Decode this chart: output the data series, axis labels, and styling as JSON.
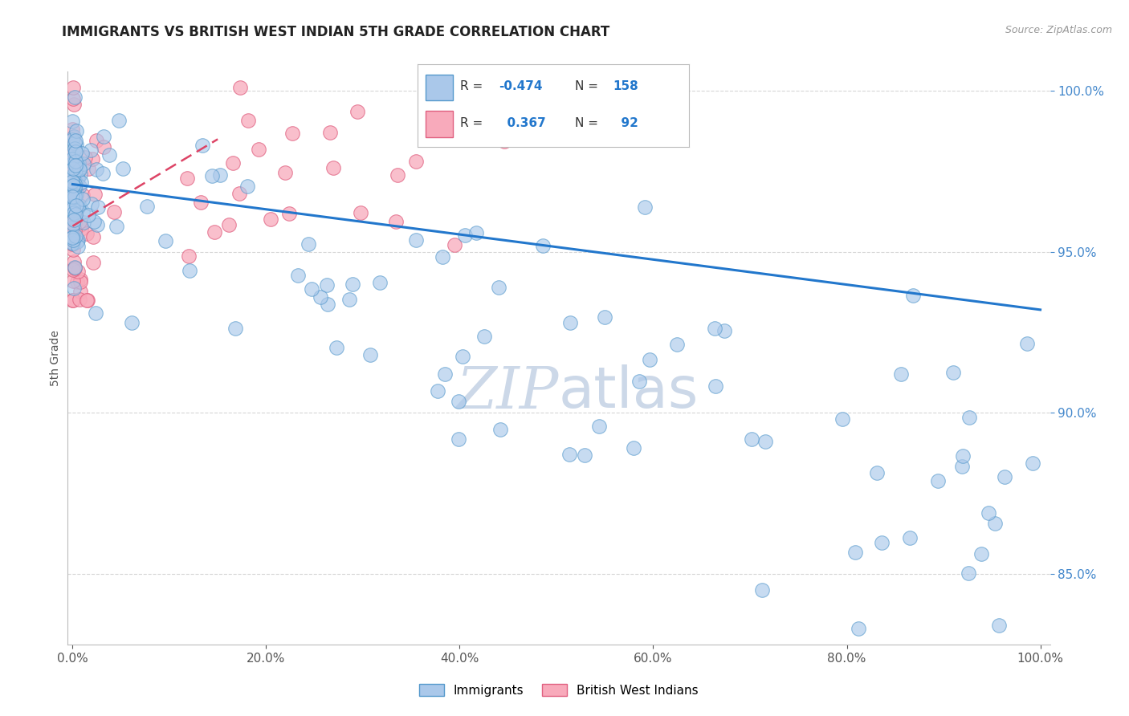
{
  "title": "IMMIGRANTS VS BRITISH WEST INDIAN 5TH GRADE CORRELATION CHART",
  "source_text": "Source: ZipAtlas.com",
  "ylabel": "5th Grade",
  "ytick_values": [
    0.85,
    0.9,
    0.95,
    1.0
  ],
  "xtick_values": [
    0.0,
    0.2,
    0.4,
    0.6,
    0.8,
    1.0
  ],
  "xlim": [
    -0.005,
    1.01
  ],
  "ylim": [
    0.828,
    1.006
  ],
  "blue_R": -0.474,
  "blue_N": 158,
  "pink_R": 0.367,
  "pink_N": 92,
  "blue_scatter_color": "#aac8ea",
  "blue_edge_color": "#5599cc",
  "pink_scatter_color": "#f8aabb",
  "pink_edge_color": "#e06080",
  "blue_line_color": "#2277cc",
  "pink_line_color": "#dd4466",
  "title_color": "#222222",
  "axis_label_color": "#555555",
  "ytick_color": "#4488cc",
  "xtick_color": "#555555",
  "watermark_color": "#ccd8e8",
  "grid_color": "#cccccc",
  "background_color": "#ffffff",
  "legend_label_blue": "Immigrants",
  "legend_label_pink": "British West Indians",
  "legend_box_color": "#dddddd",
  "blue_line_x0": 0.0,
  "blue_line_y0": 0.971,
  "blue_line_x1": 1.0,
  "blue_line_y1": 0.932,
  "pink_line_x0": 0.0,
  "pink_line_y0": 0.958,
  "pink_line_x1": 0.15,
  "pink_line_y1": 0.985
}
